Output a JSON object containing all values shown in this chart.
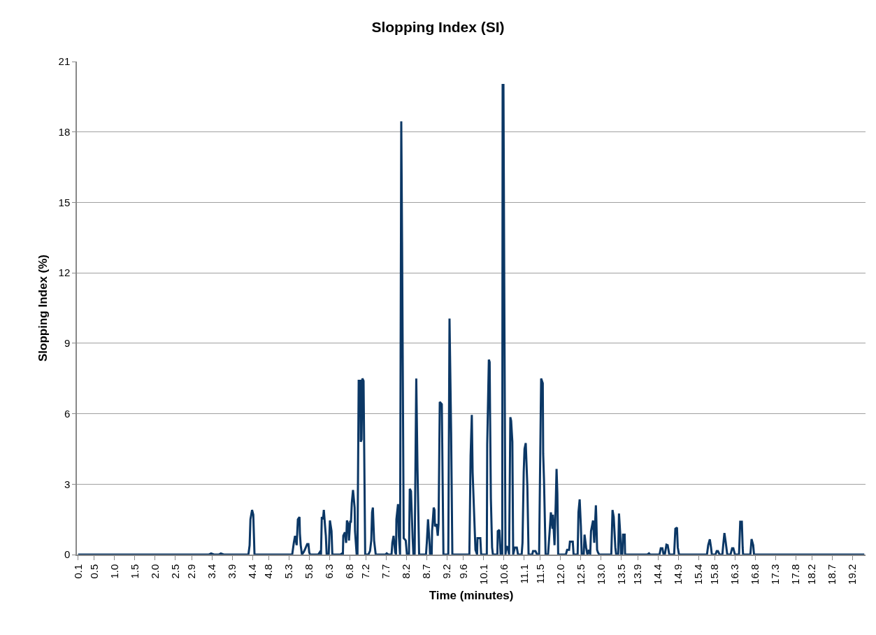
{
  "chart_data": {
    "type": "line",
    "title": "Slopping Index (SI)",
    "xlabel": "Time (minutes)",
    "ylabel": "Slopping Index (%)",
    "x": [
      0.1,
      3.32,
      3.38,
      3.45,
      3.57,
      3.62,
      3.69,
      4.3,
      4.33,
      4.35,
      4.39,
      4.42,
      4.44,
      4.45,
      5.38,
      5.42,
      5.45,
      5.49,
      5.52,
      5.56,
      5.57,
      5.59,
      5.62,
      5.66,
      5.69,
      5.75,
      5.78,
      5.8,
      5.82,
      6.02,
      6.06,
      6.09,
      6.11,
      6.14,
      6.16,
      6.2,
      6.21,
      6.23,
      6.28,
      6.31,
      6.35,
      6.37,
      6.57,
      6.61,
      6.63,
      6.64,
      6.68,
      6.71,
      6.73,
      6.76,
      6.78,
      6.81,
      6.83,
      6.85,
      6.88,
      6.92,
      6.93,
      6.97,
      6.99,
      7.02,
      7.06,
      7.07,
      7.09,
      7.11,
      7.14,
      7.18,
      7.26,
      7.3,
      7.33,
      7.35,
      7.37,
      7.4,
      7.44,
      7.68,
      7.71,
      7.75,
      7.83,
      7.85,
      7.88,
      7.92,
      7.94,
      7.95,
      7.99,
      8.01,
      8.04,
      8.07,
      8.09,
      8.13,
      8.18,
      8.21,
      8.26,
      8.28,
      8.31,
      8.35,
      8.37,
      8.4,
      8.44,
      8.47,
      8.51,
      8.68,
      8.7,
      8.73,
      8.77,
      8.78,
      8.82,
      8.83,
      8.87,
      8.89,
      8.9,
      8.94,
      8.97,
      8.99,
      9.02,
      9.07,
      9.11,
      9.23,
      9.26,
      9.3,
      9.33,
      9.75,
      9.78,
      9.81,
      9.83,
      9.87,
      9.9,
      9.94,
      9.95,
      10.02,
      10.04,
      10.18,
      10.19,
      10.23,
      10.25,
      10.26,
      10.28,
      10.31,
      10.33,
      10.44,
      10.45,
      10.49,
      10.52,
      10.56,
      10.57,
      10.59,
      10.61,
      10.64,
      10.66,
      10.69,
      10.73,
      10.76,
      10.78,
      10.81,
      10.83,
      10.87,
      10.92,
      10.95,
      11.04,
      11.06,
      11.09,
      11.11,
      11.14,
      11.18,
      11.21,
      11.3,
      11.32,
      11.38,
      11.42,
      11.47,
      11.51,
      11.52,
      11.56,
      11.57,
      11.59,
      11.63,
      11.69,
      11.73,
      11.76,
      11.8,
      11.81,
      11.85,
      11.88,
      11.9,
      11.92,
      11.94,
      12.13,
      12.16,
      12.21,
      12.23,
      12.3,
      12.32,
      12.42,
      12.44,
      12.47,
      12.5,
      12.52,
      12.57,
      12.59,
      12.63,
      12.66,
      12.7,
      12.73,
      12.75,
      12.8,
      12.83,
      12.87,
      12.88,
      12.9,
      12.92,
      12.95,
      13.25,
      13.28,
      13.31,
      13.35,
      13.37,
      13.42,
      13.44,
      13.47,
      13.49,
      13.52,
      13.54,
      13.58,
      13.59,
      14.14,
      14.18,
      14.21,
      14.44,
      14.47,
      14.51,
      14.54,
      14.57,
      14.61,
      14.64,
      14.68,
      14.8,
      14.83,
      14.87,
      14.89,
      14.92,
      15.61,
      15.64,
      15.68,
      15.71,
      15.73,
      15.82,
      15.85,
      15.88,
      15.92,
      15.99,
      16.01,
      16.04,
      16.07,
      16.11,
      16.19,
      16.23,
      16.26,
      16.3,
      16.4,
      16.43,
      16.47,
      16.49,
      16.5,
      16.68,
      16.71,
      16.75,
      16.77,
      19.49
    ],
    "series": [
      {
        "color": "#0b3765",
        "values": [
          0,
          0,
          0.05,
          0,
          0,
          0.05,
          0,
          0,
          0.4,
          1.5,
          1.9,
          1.7,
          0.6,
          0,
          0,
          0.5,
          0.8,
          0.4,
          1.5,
          1.6,
          0.9,
          0.4,
          0,
          0.1,
          0.2,
          0.45,
          0.45,
          0.1,
          0,
          0,
          0.1,
          0,
          1.6,
          1.5,
          1.9,
          1.0,
          0.8,
          0,
          0,
          1.45,
          1.0,
          0,
          0,
          0.05,
          0,
          0.8,
          0.95,
          0.5,
          1.45,
          1.3,
          0.6,
          1.4,
          1.4,
          2.2,
          2.75,
          2.0,
          1.0,
          0,
          0,
          7.4,
          7.4,
          4.8,
          4.9,
          7.5,
          7.4,
          0,
          0,
          0.15,
          0.6,
          1.8,
          2.0,
          0.6,
          0,
          0,
          0.05,
          0,
          0,
          0.5,
          0.8,
          0.1,
          0,
          1.5,
          2.15,
          0.8,
          0,
          18.45,
          13.3,
          0.7,
          0.6,
          0,
          0,
          2.8,
          2.7,
          0.7,
          0,
          0,
          7.5,
          3.7,
          0,
          0,
          0.5,
          1.5,
          0.4,
          0,
          0,
          1.0,
          2.0,
          1.9,
          1.2,
          1.3,
          0.8,
          1.3,
          6.5,
          6.4,
          0,
          0,
          10.05,
          5.2,
          0,
          0,
          4.2,
          5.95,
          3.5,
          1.6,
          0.2,
          0,
          0.7,
          0.7,
          0,
          0,
          4.7,
          8.3,
          8.2,
          6.0,
          2.4,
          0.3,
          0,
          0,
          1.0,
          1.05,
          0,
          0,
          20.0,
          20.0,
          11.5,
          0,
          0.3,
          0.35,
          0,
          5.85,
          5.7,
          4.8,
          0,
          0.3,
          0.3,
          0,
          0,
          0.5,
          3.5,
          4.5,
          4.75,
          2.9,
          0,
          0,
          0.15,
          0.15,
          0,
          0,
          6.1,
          7.5,
          7.3,
          4.3,
          3.2,
          0,
          0,
          1.0,
          1.8,
          1.1,
          1.7,
          0.4,
          2.2,
          3.65,
          2.6,
          0,
          0,
          0.2,
          0.2,
          0.55,
          0.55,
          0,
          0,
          1.8,
          2.35,
          1.2,
          0,
          0,
          0.85,
          0.3,
          0,
          0.2,
          0,
          1.0,
          1.45,
          0.5,
          2.1,
          1.6,
          0.2,
          0.1,
          0,
          0,
          1.9,
          1.6,
          0.3,
          0,
          0,
          1.75,
          0.9,
          0,
          0,
          0.85,
          0.85,
          0,
          0,
          0.05,
          0,
          0,
          0.27,
          0.27,
          0,
          0,
          0.42,
          0.4,
          0,
          0,
          1.1,
          1.15,
          0.3,
          0,
          0,
          0.4,
          0.65,
          0.3,
          0,
          0,
          0.15,
          0.15,
          0,
          0,
          0.4,
          0.92,
          0.55,
          0,
          0,
          0.27,
          0.27,
          0,
          0,
          1.4,
          1.4,
          0.3,
          0,
          0,
          0.66,
          0.4,
          0,
          0
        ]
      }
    ],
    "xlim": [
      0.07,
      19.52
    ],
    "xticks": [
      0.1,
      0.5,
      {
        "value": 1,
        "label": "1.0"
      },
      1.5,
      {
        "value": 2,
        "label": "2.0"
      },
      2.5,
      2.9,
      3.4,
      3.9,
      4.4,
      4.8,
      5.3,
      5.8,
      6.3,
      6.8,
      7.2,
      7.7,
      8.2,
      8.7,
      9.2,
      9.6,
      10.1,
      10.6,
      11.1,
      11.5,
      {
        "value": 12,
        "label": "12.0"
      },
      12.5,
      {
        "value": 13,
        "label": "13.0"
      },
      13.5,
      13.9,
      14.4,
      14.9,
      15.4,
      15.8,
      16.3,
      16.8,
      17.3,
      17.8,
      18.2,
      18.7,
      19.2
    ],
    "ylim": [
      0,
      21
    ],
    "yticks": [
      0,
      3,
      6,
      9,
      12,
      15,
      18,
      21
    ],
    "grid": "y",
    "marker": "none",
    "line_style": "solid"
  }
}
